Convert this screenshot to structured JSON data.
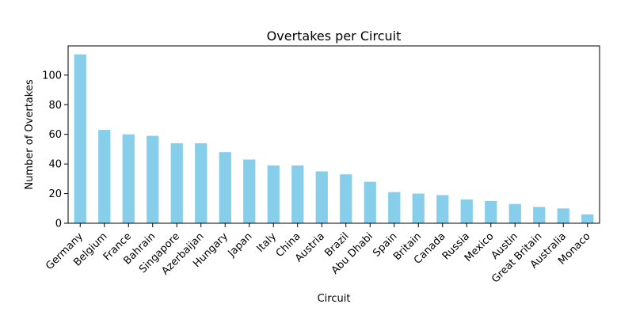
{
  "chart_data": {
    "type": "bar",
    "title": "Overtakes per Circuit",
    "xlabel": "Circuit",
    "ylabel": "Number of Overtakes",
    "categories": [
      "Germany",
      "Belgium",
      "France",
      "Bahrain",
      "Singapore",
      "Azerbaijan",
      "Hungary",
      "Japan",
      "Italy",
      "China",
      "Austria",
      "Brazil",
      "Abu Dhabi",
      "Spain",
      "Britain",
      "Canada",
      "Russia",
      "Mexico",
      "Austin",
      "Great Britain",
      "Australia",
      "Monaco"
    ],
    "values": [
      114,
      63,
      60,
      59,
      54,
      54,
      48,
      43,
      39,
      39,
      35,
      33,
      28,
      21,
      20,
      19,
      16,
      15,
      13,
      11,
      10,
      6
    ],
    "ylim": [
      0,
      119.7
    ],
    "yticks": [
      0,
      20,
      40,
      60,
      80,
      100
    ],
    "grid": false,
    "bar_color": "#87ceeb"
  }
}
